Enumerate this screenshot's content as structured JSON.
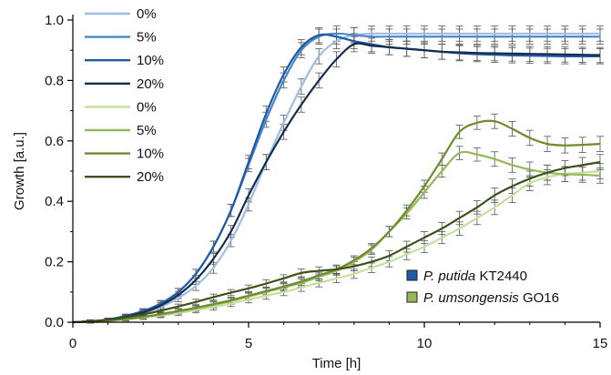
{
  "chart_data": {
    "type": "line",
    "title": "",
    "xlabel": "Time [h]",
    "ylabel": "Growth [a.u.]",
    "xlim": [
      0,
      15
    ],
    "ylim": [
      0,
      1.0
    ],
    "x_ticks": [
      "0",
      "5",
      "10",
      "15"
    ],
    "y_ticks": [
      "0.0",
      "0.2",
      "0.4",
      "0.6",
      "0.8",
      "1.0"
    ],
    "grid": false,
    "legend_position": "top-left",
    "error_bars": true,
    "x": [
      0,
      0.5,
      1,
      1.5,
      2,
      2.5,
      3,
      3.5,
      4,
      4.5,
      5,
      5.5,
      6,
      6.5,
      7,
      7.5,
      8,
      8.5,
      9,
      9.5,
      10,
      10.5,
      11,
      11.5,
      12,
      12.5,
      13,
      13.5,
      14,
      14.5,
      15
    ],
    "series": [
      {
        "name": "0%",
        "group": "P. putida KT2440",
        "color": "#9dbde2",
        "values": [
          0.0,
          0.002,
          0.006,
          0.015,
          0.03,
          0.05,
          0.08,
          0.12,
          0.18,
          0.27,
          0.39,
          0.53,
          0.66,
          0.78,
          0.88,
          0.93,
          0.95,
          0.955,
          0.955,
          0.955,
          0.955,
          0.955,
          0.955,
          0.955,
          0.955,
          0.955,
          0.955,
          0.955,
          0.955,
          0.955,
          0.955
        ],
        "errors": [
          0,
          0.005,
          0.005,
          0.006,
          0.008,
          0.01,
          0.012,
          0.015,
          0.018,
          0.02,
          0.022,
          0.025,
          0.025,
          0.025,
          0.025,
          0.025,
          0.025,
          0.025,
          0.025,
          0.025,
          0.025,
          0.025,
          0.025,
          0.025,
          0.025,
          0.025,
          0.025,
          0.025,
          0.025,
          0.025,
          0.025
        ]
      },
      {
        "name": "5%",
        "group": "P. putida KT2440",
        "color": "#4a87c7",
        "values": [
          0.0,
          0.003,
          0.008,
          0.02,
          0.035,
          0.06,
          0.1,
          0.16,
          0.25,
          0.37,
          0.52,
          0.67,
          0.8,
          0.9,
          0.945,
          0.955,
          0.95,
          0.945,
          0.945,
          0.945,
          0.945,
          0.945,
          0.945,
          0.945,
          0.945,
          0.945,
          0.945,
          0.945,
          0.945,
          0.945,
          0.945
        ],
        "errors": [
          0,
          0.005,
          0.005,
          0.006,
          0.008,
          0.01,
          0.012,
          0.015,
          0.018,
          0.02,
          0.022,
          0.025,
          0.025,
          0.025,
          0.025,
          0.025,
          0.025,
          0.025,
          0.025,
          0.025,
          0.025,
          0.025,
          0.025,
          0.025,
          0.025,
          0.025,
          0.025,
          0.025,
          0.025,
          0.025,
          0.025
        ]
      },
      {
        "name": "10%",
        "group": "P. putida KT2440",
        "color": "#1f5aa6",
        "values": [
          0.0,
          0.003,
          0.009,
          0.021,
          0.037,
          0.062,
          0.1,
          0.16,
          0.25,
          0.37,
          0.53,
          0.69,
          0.82,
          0.91,
          0.95,
          0.945,
          0.93,
          0.92,
          0.91,
          0.905,
          0.9,
          0.895,
          0.89,
          0.887,
          0.885,
          0.883,
          0.882,
          0.881,
          0.88,
          0.88,
          0.88
        ],
        "errors": [
          0,
          0.005,
          0.005,
          0.006,
          0.008,
          0.01,
          0.012,
          0.015,
          0.018,
          0.02,
          0.022,
          0.025,
          0.025,
          0.025,
          0.025,
          0.025,
          0.025,
          0.025,
          0.025,
          0.025,
          0.025,
          0.025,
          0.025,
          0.025,
          0.025,
          0.025,
          0.025,
          0.025,
          0.025,
          0.025,
          0.025
        ]
      },
      {
        "name": "20%",
        "group": "P. putida KT2440",
        "color": "#162c4e",
        "values": [
          0.0,
          0.003,
          0.008,
          0.018,
          0.032,
          0.055,
          0.09,
          0.14,
          0.21,
          0.3,
          0.42,
          0.53,
          0.63,
          0.72,
          0.8,
          0.87,
          0.92,
          0.915,
          0.91,
          0.905,
          0.9,
          0.895,
          0.893,
          0.891,
          0.89,
          0.889,
          0.888,
          0.887,
          0.886,
          0.885,
          0.884
        ],
        "errors": [
          0,
          0.005,
          0.005,
          0.006,
          0.008,
          0.01,
          0.012,
          0.015,
          0.018,
          0.02,
          0.022,
          0.025,
          0.025,
          0.025,
          0.025,
          0.025,
          0.025,
          0.025,
          0.025,
          0.025,
          0.025,
          0.025,
          0.025,
          0.025,
          0.025,
          0.025,
          0.025,
          0.025,
          0.025,
          0.025,
          0.025
        ]
      },
      {
        "name": "0%",
        "group": "P. umsongensis GO16",
        "color": "#c5df9c",
        "values": [
          0.0,
          0.001,
          0.004,
          0.009,
          0.015,
          0.022,
          0.03,
          0.04,
          0.05,
          0.062,
          0.075,
          0.088,
          0.1,
          0.115,
          0.13,
          0.145,
          0.16,
          0.18,
          0.2,
          0.225,
          0.25,
          0.28,
          0.31,
          0.345,
          0.38,
          0.42,
          0.46,
          0.48,
          0.49,
          0.495,
          0.5
        ],
        "errors": [
          0,
          0.004,
          0.004,
          0.005,
          0.006,
          0.007,
          0.008,
          0.009,
          0.01,
          0.01,
          0.011,
          0.012,
          0.012,
          0.013,
          0.013,
          0.014,
          0.015,
          0.016,
          0.017,
          0.018,
          0.02,
          0.02,
          0.022,
          0.022,
          0.024,
          0.024,
          0.025,
          0.025,
          0.025,
          0.025,
          0.025
        ]
      },
      {
        "name": "5%",
        "group": "P. umsongensis GO16",
        "color": "#95b85a",
        "values": [
          0.0,
          0.002,
          0.005,
          0.01,
          0.017,
          0.025,
          0.035,
          0.045,
          0.057,
          0.07,
          0.085,
          0.1,
          0.115,
          0.13,
          0.15,
          0.17,
          0.2,
          0.24,
          0.3,
          0.36,
          0.43,
          0.5,
          0.56,
          0.555,
          0.54,
          0.52,
          0.505,
          0.495,
          0.49,
          0.488,
          0.485
        ],
        "errors": [
          0,
          0.004,
          0.004,
          0.005,
          0.006,
          0.007,
          0.008,
          0.009,
          0.01,
          0.01,
          0.011,
          0.012,
          0.012,
          0.013,
          0.013,
          0.014,
          0.015,
          0.016,
          0.017,
          0.018,
          0.02,
          0.02,
          0.022,
          0.022,
          0.024,
          0.024,
          0.025,
          0.025,
          0.025,
          0.025,
          0.025
        ]
      },
      {
        "name": "10%",
        "group": "P. umsongensis GO16",
        "color": "#6d8c2c",
        "values": [
          0.0,
          0.002,
          0.005,
          0.011,
          0.018,
          0.027,
          0.037,
          0.048,
          0.06,
          0.073,
          0.088,
          0.103,
          0.118,
          0.135,
          0.155,
          0.175,
          0.205,
          0.245,
          0.3,
          0.37,
          0.45,
          0.54,
          0.63,
          0.66,
          0.665,
          0.64,
          0.61,
          0.59,
          0.585,
          0.587,
          0.59
        ],
        "errors": [
          0,
          0.004,
          0.004,
          0.005,
          0.006,
          0.007,
          0.008,
          0.009,
          0.01,
          0.01,
          0.011,
          0.012,
          0.012,
          0.013,
          0.013,
          0.014,
          0.015,
          0.016,
          0.017,
          0.018,
          0.02,
          0.02,
          0.022,
          0.022,
          0.024,
          0.024,
          0.025,
          0.025,
          0.025,
          0.025,
          0.025
        ]
      },
      {
        "name": "20%",
        "group": "P. umsongensis GO16",
        "color": "#3d5218",
        "values": [
          0.0,
          0.003,
          0.008,
          0.016,
          0.026,
          0.038,
          0.052,
          0.067,
          0.083,
          0.098,
          0.112,
          0.128,
          0.145,
          0.163,
          0.17,
          0.175,
          0.185,
          0.2,
          0.22,
          0.25,
          0.28,
          0.31,
          0.345,
          0.38,
          0.42,
          0.45,
          0.475,
          0.495,
          0.51,
          0.52,
          0.53
        ],
        "errors": [
          0,
          0.004,
          0.004,
          0.005,
          0.006,
          0.007,
          0.008,
          0.009,
          0.01,
          0.01,
          0.011,
          0.012,
          0.012,
          0.013,
          0.013,
          0.014,
          0.015,
          0.016,
          0.017,
          0.018,
          0.02,
          0.02,
          0.022,
          0.022,
          0.024,
          0.024,
          0.025,
          0.025,
          0.025,
          0.025,
          0.025
        ]
      }
    ],
    "species_legend": [
      {
        "italic": "P. putida",
        "rest": " KT2440",
        "color": "#1f5aa6"
      },
      {
        "italic": "P. umsongensis",
        "rest": " GO16",
        "color": "#95b85a"
      }
    ]
  }
}
